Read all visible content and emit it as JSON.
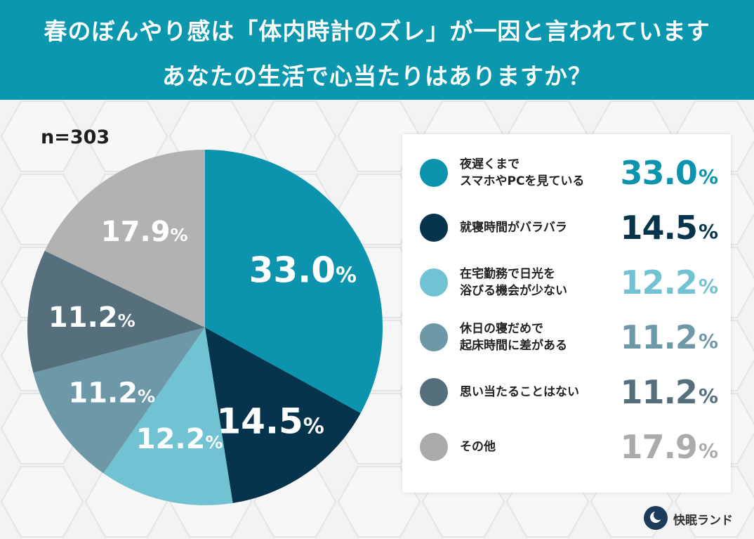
{
  "header": {
    "title_line1": "春のぼんやり感は「体内時計のズレ」が一因と言われています",
    "title_line2": "あなたの生活で心当たりはありますか？"
  },
  "sample_size": "n=303",
  "brand": {
    "name": "快眠ランド"
  },
  "colors": {
    "header_bg": "#0b97ae"
  },
  "chart_data": {
    "type": "pie",
    "title": "春のぼんやり感は「体内時計のズレ」が一因と言われています あなたの生活で心当たりはありますか？",
    "n": 303,
    "unit": "%",
    "start": "12 o'clock, clockwise",
    "slices": [
      {
        "label_lines": [
          "夜遅くまで",
          "スマホやPCを見ている"
        ],
        "value": 33.0,
        "display": "33.0",
        "color": "#0c94ae",
        "legend_color": "#0c94ae",
        "text_color": "#ffffff"
      },
      {
        "label_lines": [
          "就寝時間がバラバラ"
        ],
        "value": 14.5,
        "display": "14.5",
        "color": "#06344c",
        "legend_color": "#06344c",
        "text_color": "#ffffff"
      },
      {
        "label_lines": [
          "在宅勤務で日光を",
          "浴びる機会が少ない"
        ],
        "value": 12.2,
        "display": "12.2",
        "color": "#71c2d3",
        "legend_color": "#71c2d3",
        "text_color": "#ffffff"
      },
      {
        "label_lines": [
          "休日の寝だめで",
          "起床時間に差がある"
        ],
        "value": 11.2,
        "display": "11.2",
        "color": "#6d98a8",
        "legend_color": "#6d98a8",
        "text_color": "#ffffff"
      },
      {
        "label_lines": [
          "思い当たることはない"
        ],
        "value": 11.2,
        "display": "11.2",
        "color": "#566f7d",
        "legend_color": "#566f7d",
        "text_color": "#ffffff"
      },
      {
        "label_lines": [
          "その他"
        ],
        "value": 17.9,
        "display": "17.9",
        "color": "#b2b2b2",
        "legend_color": "#ababab",
        "text_color": "#ffffff"
      }
    ]
  }
}
